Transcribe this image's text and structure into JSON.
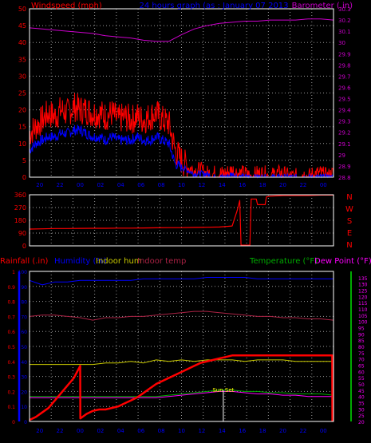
{
  "colors": {
    "background": "#000000",
    "grid": "#9a9a9a",
    "frame": "#ffffff",
    "wind": "#ff0000",
    "gust": "#0000ff",
    "barometer": "#cc00cc",
    "direction": "#ff0000",
    "rain": "#ff0000",
    "humidity": "#0000ff",
    "indoor_hum": "#cccc00",
    "indoor_temp": "#aa2244",
    "temperature": "#00aa00",
    "dew_point": "#ff00ff",
    "sunset": "#ffff00"
  },
  "chart_data": [
    {
      "type": "line",
      "title": "24 hours graph (as : January 07 2013",
      "ylabel": "Windspeed (mph)",
      "y2label": "Barometer (.in)",
      "x_tick_labels": [
        "20",
        "22",
        "00",
        "02",
        "04",
        "06",
        "08",
        "10",
        "12",
        "14",
        "16",
        "18",
        "20",
        "22",
        "00"
      ],
      "ylim": [
        0,
        50
      ],
      "y_ticks": [
        "0",
        "5",
        "10",
        "15",
        "20",
        "25",
        "30",
        "35",
        "40",
        "45",
        "50"
      ],
      "y2lim": [
        28.8,
        30.3
      ],
      "y2_ticks": [
        "28.8",
        "28.9",
        "29",
        "29.1",
        "29.2",
        "29.3",
        "29.4",
        "29.5",
        "29.6",
        "29.7",
        "29.8",
        "29.9",
        "30",
        "30.1",
        "30.2",
        "30.3"
      ],
      "grid": true,
      "series": [
        {
          "name": "Windspeed",
          "axis": "left",
          "x": [
            0,
            0.5,
            1,
            1.5,
            2,
            2.5,
            3,
            3.5,
            4,
            4.5,
            5,
            5.5,
            6,
            6.5,
            7,
            7.5,
            8,
            8.5,
            9,
            9.5,
            10,
            10.5,
            11,
            11.5,
            12,
            12.5,
            13,
            13.5,
            14,
            14.5,
            15,
            15.5,
            16,
            16.5,
            17,
            17.5,
            18,
            18.5,
            19,
            19.5,
            20,
            20.5,
            21,
            21.5,
            22,
            22.5,
            23,
            23.5,
            24
          ],
          "values": [
            13,
            15,
            17,
            19,
            18,
            20,
            19,
            21,
            20,
            20,
            19,
            19,
            18,
            19,
            17,
            18,
            17,
            18,
            17,
            18,
            19,
            17,
            16,
            8,
            5,
            3,
            2,
            2,
            1,
            1,
            1,
            1,
            2,
            1,
            1,
            0,
            1,
            1,
            0,
            1,
            1,
            0,
            0,
            1,
            0,
            1,
            1,
            0,
            1
          ]
        },
        {
          "name": "Gust",
          "axis": "left",
          "x": [
            0,
            0.5,
            1,
            1.5,
            2,
            2.5,
            3,
            3.5,
            4,
            4.5,
            5,
            5.5,
            6,
            6.5,
            7,
            7.5,
            8,
            8.5,
            9,
            9.5,
            10,
            10.5,
            11,
            11.5,
            12,
            12.5,
            13,
            13.5,
            14,
            14.5,
            15,
            15.5,
            16,
            16.5,
            17,
            17.5,
            18,
            18.5,
            19,
            19.5,
            20,
            20.5,
            21,
            21.5,
            22,
            22.5,
            23,
            23.5,
            24
          ],
          "values": [
            8,
            10,
            11,
            12,
            12,
            13,
            13,
            14,
            14,
            13,
            12,
            12,
            11,
            12,
            11,
            11,
            11,
            12,
            11,
            11,
            12,
            11,
            10,
            4,
            3,
            2,
            1,
            1,
            1,
            0,
            0,
            0,
            1,
            0,
            0,
            0,
            0,
            0,
            0,
            0,
            0,
            0,
            0,
            0,
            0,
            0,
            0,
            0,
            0
          ]
        },
        {
          "name": "Barometer",
          "axis": "right",
          "x": [
            0,
            1,
            2,
            3,
            4,
            5,
            6,
            7,
            8,
            9,
            10,
            11,
            12,
            13,
            14,
            15,
            16,
            17,
            18,
            19,
            20,
            21,
            22,
            23,
            24
          ],
          "values": [
            30.13,
            30.12,
            30.11,
            30.1,
            30.09,
            30.08,
            30.06,
            30.05,
            30.04,
            30.02,
            30.01,
            30.01,
            30.07,
            30.12,
            30.15,
            30.17,
            30.18,
            30.19,
            30.19,
            30.2,
            30.2,
            30.2,
            30.21,
            30.21,
            30.2
          ]
        }
      ]
    },
    {
      "type": "line",
      "ylim": [
        0,
        360
      ],
      "y_ticks": [
        "0",
        "90",
        "180",
        "270",
        "360"
      ],
      "direction_labels": [
        "N",
        "W",
        "S",
        "E",
        "N"
      ],
      "grid": true,
      "series": [
        {
          "name": "Wind direction",
          "x": [
            0,
            1,
            2,
            3,
            4,
            5,
            6,
            7,
            8,
            9,
            10,
            11,
            12,
            13,
            14,
            15,
            16,
            16.4,
            16.6,
            16.7,
            17.4,
            17.5,
            17.9,
            18,
            18.6,
            18.7,
            19,
            20,
            21,
            22,
            23,
            24
          ],
          "values": [
            118,
            120,
            122,
            122,
            123,
            124,
            124,
            125,
            125,
            126,
            127,
            128,
            128,
            130,
            131,
            133,
            140,
            250,
            320,
            5,
            5,
            330,
            330,
            290,
            290,
            345,
            350,
            355,
            355,
            355,
            358,
            358
          ]
        }
      ]
    },
    {
      "type": "line",
      "left_axis_labels": [
        "Rainfall (.in)",
        "Humidity (%)",
        "Indoor hum",
        "Indoor temp"
      ],
      "right_axis_labels": [
        "Temperature (°F)",
        "Dew Point (°F)"
      ],
      "x_tick_labels": [
        "20",
        "22",
        "00",
        "02",
        "04",
        "06",
        "08",
        "10",
        "12",
        "14",
        "16",
        "18",
        "20",
        "22",
        "00"
      ],
      "rain_ticks": [
        "0",
        "0.1",
        "0.2",
        "0.3",
        "0.4",
        "0.5",
        "0.6",
        "0.7",
        "0.8",
        "0.9",
        "1"
      ],
      "hum_ticks": [
        "0",
        "10",
        "20",
        "30",
        "40",
        "50",
        "60",
        "70",
        "80",
        "90",
        "100"
      ],
      "temp_ticks": [
        "20",
        "25",
        "30",
        "35",
        "40",
        "45",
        "50",
        "55",
        "60",
        "65",
        "70",
        "75",
        "80",
        "85",
        "90",
        "95",
        "100",
        "105",
        "110",
        "115",
        "120",
        "125",
        "130",
        "135"
      ],
      "rain_lim": [
        0,
        1.0
      ],
      "hum_lim": [
        0,
        100
      ],
      "temp_lim": [
        20,
        140
      ],
      "annotation": "Sun Set",
      "grid": true,
      "series": [
        {
          "name": "Rainfall",
          "axis": "rain",
          "x": [
            0,
            0.5,
            1,
            1.5,
            2,
            2.5,
            3,
            3.5,
            4,
            4.01,
            4.5,
            5,
            5.5,
            6,
            6.5,
            7,
            7.5,
            8,
            8.5,
            9,
            9.5,
            10,
            10.5,
            11,
            11.5,
            12,
            12.5,
            13,
            13.5,
            14,
            14.5,
            15,
            15.5,
            16,
            16.5,
            17,
            17.5,
            18,
            18.5,
            19,
            19.5,
            20,
            20.5,
            21,
            21.5,
            22,
            22.5,
            23,
            23.5,
            23.9,
            23.91
          ],
          "values": [
            0.01,
            0.03,
            0.06,
            0.09,
            0.14,
            0.19,
            0.24,
            0.29,
            0.37,
            0.02,
            0.05,
            0.07,
            0.08,
            0.08,
            0.09,
            0.1,
            0.12,
            0.14,
            0.16,
            0.19,
            0.22,
            0.25,
            0.27,
            0.29,
            0.31,
            0.33,
            0.35,
            0.37,
            0.39,
            0.4,
            0.41,
            0.42,
            0.43,
            0.44,
            0.44,
            0.44,
            0.44,
            0.44,
            0.44,
            0.44,
            0.44,
            0.44,
            0.44,
            0.44,
            0.44,
            0.44,
            0.44,
            0.44,
            0.44,
            0.44,
            0.0
          ]
        },
        {
          "name": "Humidity",
          "axis": "hum",
          "x": [
            0,
            1,
            2,
            3,
            4,
            5,
            6,
            7,
            8,
            9,
            10,
            11,
            12,
            13,
            14,
            15,
            16,
            17,
            18,
            19,
            20,
            21,
            22,
            23,
            24
          ],
          "values": [
            94,
            91,
            93,
            93,
            94,
            94,
            94,
            94,
            94,
            95,
            95,
            95,
            95,
            95,
            96,
            96,
            96,
            96,
            95,
            95,
            95,
            95,
            95,
            95,
            95
          ]
        },
        {
          "name": "Indoor hum",
          "axis": "hum",
          "x": [
            0,
            1,
            2,
            3,
            4,
            5,
            6,
            7,
            8,
            9,
            10,
            11,
            12,
            13,
            14,
            15,
            16,
            17,
            18,
            19,
            20,
            21,
            22,
            23,
            24
          ],
          "values": [
            38,
            38,
            38,
            38,
            38,
            38,
            39,
            39,
            40,
            39,
            41,
            40,
            41,
            40,
            41,
            41,
            41,
            40,
            41,
            41,
            41,
            40,
            40,
            40,
            40
          ]
        },
        {
          "name": "Indoor temp",
          "axis": "temp",
          "x": [
            0,
            1,
            2,
            3,
            4,
            5,
            6,
            7,
            8,
            9,
            10,
            11,
            12,
            13,
            14,
            15,
            16,
            17,
            18,
            19,
            20,
            21,
            22,
            23,
            24
          ],
          "values": [
            104,
            105,
            105,
            104,
            103,
            101,
            103,
            103,
            104,
            104,
            105,
            106,
            107,
            108,
            108,
            107,
            106,
            105,
            104,
            104,
            103,
            103,
            102,
            102,
            101
          ]
        },
        {
          "name": "Temperature",
          "axis": "temp",
          "x": [
            0,
            1,
            2,
            3,
            4,
            5,
            6,
            7,
            8,
            9,
            10,
            11,
            12,
            13,
            14,
            15,
            16,
            17,
            18,
            19,
            20,
            21,
            22,
            23,
            24
          ],
          "values": [
            40,
            40,
            40,
            40,
            40,
            40,
            40,
            40,
            40,
            40,
            40,
            41,
            42,
            43,
            44,
            45,
            45,
            44,
            44,
            43,
            43,
            42,
            42,
            42,
            41
          ]
        },
        {
          "name": "Dew Point",
          "axis": "temp",
          "x": [
            0,
            1,
            2,
            3,
            4,
            5,
            6,
            7,
            8,
            9,
            10,
            11,
            12,
            13,
            14,
            15,
            16,
            17,
            18,
            19,
            20,
            21,
            22,
            23,
            24
          ],
          "values": [
            39,
            39,
            39,
            39,
            39,
            39,
            39,
            39,
            39,
            39,
            39,
            40,
            41,
            42,
            43,
            44,
            44,
            43,
            42,
            42,
            41,
            41,
            40,
            40,
            40
          ]
        }
      ]
    }
  ]
}
